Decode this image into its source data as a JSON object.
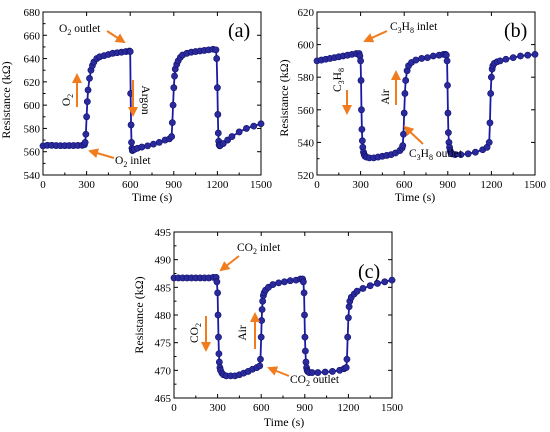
{
  "chart_data": [
    {
      "type": "line",
      "panel_label": "(a)",
      "xlabel": "Time (s)",
      "ylabel": "Resistance (kΩ)",
      "xlim": [
        0,
        1500
      ],
      "ylim": [
        540,
        680
      ],
      "xticks": [
        0,
        300,
        600,
        900,
        1200,
        1500
      ],
      "yticks": [
        540,
        560,
        580,
        600,
        620,
        640,
        660,
        680
      ],
      "x": [
        0,
        30,
        60,
        90,
        120,
        150,
        180,
        210,
        240,
        270,
        285,
        290,
        295,
        300,
        305,
        310,
        320,
        330,
        340,
        350,
        370,
        390,
        420,
        450,
        480,
        510,
        540,
        570,
        595,
        600,
        603,
        606,
        609,
        612,
        615,
        620,
        630,
        650,
        680,
        720,
        760,
        800,
        840,
        870,
        885,
        890,
        895,
        900,
        905,
        910,
        920,
        930,
        945,
        960,
        990,
        1020,
        1050,
        1080,
        1110,
        1140,
        1170,
        1190,
        1195,
        1200,
        1203,
        1206,
        1209,
        1212,
        1216,
        1220,
        1240,
        1270,
        1300,
        1350,
        1400,
        1450,
        1500
      ],
      "y": [
        565,
        565.5,
        565.5,
        565.3,
        565.2,
        565.2,
        565.3,
        565.3,
        565.4,
        565.5,
        566,
        568,
        575,
        590,
        603,
        613,
        623,
        630,
        634,
        637,
        640,
        641.5,
        642.5,
        643.5,
        644.5,
        645,
        645.5,
        646,
        646.5,
        646,
        610,
        583,
        568,
        563,
        561,
        561.5,
        562,
        563,
        564,
        565,
        566.5,
        568,
        570,
        571,
        573,
        585,
        600,
        615,
        625,
        631,
        635,
        638,
        641,
        643,
        644.5,
        645.5,
        646,
        646.5,
        647,
        647.5,
        648,
        647.5,
        640,
        615,
        592,
        576,
        569,
        566,
        565,
        565.5,
        567,
        570,
        573,
        577,
        580,
        582,
        584
      ],
      "line_color": "#1a1aa6",
      "marker_color": "#2a2a9c",
      "annotations": [
        {
          "text_main": "O",
          "text_sub": "2",
          "text_tail": " outlet"
        },
        {
          "text_main": "O",
          "text_sub": "2",
          "text_tail": " inlet"
        },
        {
          "text_main": "O",
          "text_sub": "2",
          "text_tail": ""
        },
        {
          "text_main": "Argon",
          "text_sub": "",
          "text_tail": ""
        }
      ],
      "arrow_color": "#f07c1e"
    },
    {
      "type": "line",
      "panel_label": "(b)",
      "xlabel": "Time (s)",
      "ylabel": "Resistance (kΩ)",
      "xlim": [
        0,
        1500
      ],
      "ylim": [
        520,
        620
      ],
      "xticks": [
        0,
        300,
        600,
        900,
        1200,
        1500
      ],
      "yticks": [
        520,
        540,
        560,
        580,
        600,
        620
      ],
      "x": [
        0,
        30,
        60,
        90,
        120,
        150,
        180,
        210,
        240,
        270,
        290,
        295,
        300,
        303,
        306,
        309,
        312,
        315,
        320,
        325,
        330,
        340,
        360,
        390,
        420,
        450,
        480,
        510,
        540,
        570,
        585,
        590,
        595,
        600,
        605,
        610,
        620,
        630,
        650,
        680,
        720,
        760,
        800,
        840,
        870,
        885,
        890,
        895,
        898,
        901,
        904,
        908,
        912,
        916,
        920,
        930,
        950,
        990,
        1040,
        1090,
        1140,
        1170,
        1185,
        1190,
        1195,
        1200,
        1205,
        1210,
        1220,
        1240,
        1260,
        1300,
        1350,
        1400,
        1450,
        1500
      ],
      "y": [
        590,
        590.5,
        591,
        591.5,
        592,
        592.5,
        593,
        593.5,
        594,
        594.5,
        594.5,
        593,
        590,
        578,
        560,
        548,
        541,
        537,
        534,
        532.5,
        531.5,
        531,
        530.5,
        530.5,
        531,
        531.5,
        532,
        532.5,
        533.5,
        535,
        536.5,
        538,
        545,
        558,
        570,
        578,
        584,
        587,
        589,
        590.5,
        591.5,
        592,
        593,
        593.5,
        594,
        594,
        593.5,
        590,
        575,
        558,
        546,
        540,
        537,
        535,
        534,
        533,
        532.5,
        532.5,
        533,
        534,
        535.5,
        537,
        540,
        552,
        570,
        580,
        585,
        587,
        588.5,
        589.5,
        590,
        591,
        592,
        593,
        593.5,
        594
      ],
      "line_color": "#1a1aa6",
      "marker_color": "#2a2a9c",
      "annotations": [
        {
          "text_main": "C",
          "text_sub": "3",
          "text_mid": "H",
          "text_sub2": "8",
          "text_tail": " inlet"
        },
        {
          "text_main": "C",
          "text_sub": "3",
          "text_mid": "H",
          "text_sub2": "8",
          "text_tail": " outlet"
        },
        {
          "text_main": "C",
          "text_sub": "3",
          "text_mid": "H",
          "text_sub2": "8",
          "text_tail": ""
        },
        {
          "text_main": "Air",
          "text_sub": "",
          "text_mid": "",
          "text_sub2": "",
          "text_tail": ""
        }
      ],
      "arrow_color": "#f07c1e"
    },
    {
      "type": "line",
      "panel_label": "(c)",
      "xlabel": "Time (s)",
      "ylabel": "Resistance (kΩ)",
      "xlim": [
        0,
        1500
      ],
      "ylim": [
        465,
        495
      ],
      "xticks": [
        0,
        300,
        600,
        900,
        1200,
        1500
      ],
      "yticks": [
        465,
        470,
        475,
        480,
        485,
        490,
        495
      ],
      "x": [
        0,
        30,
        60,
        90,
        120,
        150,
        180,
        210,
        240,
        270,
        290,
        295,
        300,
        303,
        306,
        309,
        312,
        316,
        320,
        330,
        340,
        360,
        390,
        420,
        450,
        480,
        510,
        540,
        570,
        590,
        595,
        600,
        603,
        606,
        610,
        615,
        620,
        630,
        650,
        680,
        720,
        760,
        800,
        840,
        870,
        885,
        890,
        895,
        898,
        901,
        904,
        908,
        912,
        916,
        920,
        930,
        950,
        990,
        1040,
        1090,
        1140,
        1170,
        1185,
        1190,
        1195,
        1200,
        1205,
        1210,
        1220,
        1240,
        1260,
        1300,
        1350,
        1400,
        1450,
        1500
      ],
      "y": [
        486.7,
        486.7,
        486.7,
        486.7,
        486.7,
        486.7,
        486.7,
        486.7,
        486.7,
        486.8,
        486.8,
        486,
        484,
        480,
        476,
        473,
        471.5,
        470.5,
        470,
        469.5,
        469.2,
        469,
        469,
        469,
        469.2,
        469.5,
        469.8,
        470.2,
        470.5,
        470.8,
        472,
        476,
        479,
        481,
        482.5,
        483.5,
        484,
        484.5,
        485,
        485.5,
        485.8,
        486,
        486.2,
        486.3,
        486.5,
        486.5,
        486,
        484,
        480,
        476,
        473.5,
        471.5,
        470.5,
        470,
        469.8,
        469.6,
        469.6,
        469.6,
        469.7,
        469.8,
        470,
        470.3,
        470.5,
        472,
        476,
        479.5,
        481.5,
        482.5,
        483.2,
        483.8,
        484.3,
        484.8,
        485.3,
        485.7,
        486,
        486.3
      ],
      "line_color": "#1a1aa6",
      "marker_color": "#2a2a9c",
      "annotations": [
        {
          "text_main": "CO",
          "text_sub": "2",
          "text_tail": " inlet"
        },
        {
          "text_main": "CO",
          "text_sub": "2",
          "text_tail": " outlet"
        },
        {
          "text_main": "CO",
          "text_sub": "2",
          "text_tail": ""
        },
        {
          "text_main": "Air",
          "text_sub": "",
          "text_tail": ""
        }
      ],
      "arrow_color": "#f07c1e"
    }
  ]
}
